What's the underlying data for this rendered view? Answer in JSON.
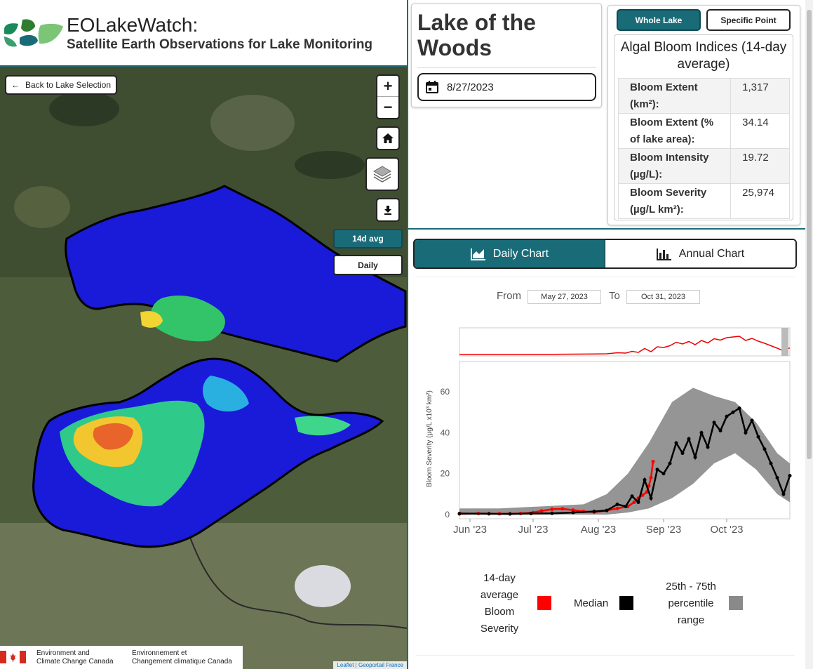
{
  "header": {
    "title": "EOLakeWatch:",
    "subtitle": "Satellite Earth Observations for Lake Monitoring"
  },
  "map": {
    "back_label": "Back to Lake Selection",
    "zoom_in": "+",
    "zoom_out": "−",
    "avg_label": "14d avg",
    "daily_label": "Daily",
    "attribution": "Leaflet | Geoportail France",
    "gov_en": [
      "Environment and",
      "Climate Change Canada"
    ],
    "gov_fr": [
      "Environnement et",
      "Changement climatique Canada"
    ]
  },
  "lake": {
    "name": "Lake of the Woods",
    "date": "8/27/2023"
  },
  "mode": {
    "whole_lake": "Whole Lake",
    "specific_point": "Specific Point"
  },
  "indices": {
    "title": "Algal Bloom Indices (14-day average)",
    "rows": [
      {
        "label": "Bloom Extent (km²):",
        "value": "1,317"
      },
      {
        "label": "Bloom Extent (% of lake area):",
        "value": "34.14"
      },
      {
        "label": "Bloom Intensity (µg/L):",
        "value": "19.72"
      },
      {
        "label": "Bloom Severity (µg/L km²):",
        "value": "25,974"
      }
    ]
  },
  "tabs": {
    "daily": "Daily Chart",
    "annual": "Annual Chart"
  },
  "range": {
    "from_label": "From",
    "from_value": "May 27, 2023",
    "to_label": "To",
    "to_value": "Oct 31, 2023"
  },
  "legend": {
    "avg": "14-day average Bloom Severity",
    "median": "Median",
    "pct": "25th - 75th percentile range"
  },
  "colors": {
    "accent": "#1a6b78",
    "avg": "#ff0000",
    "median": "#000000",
    "pct": "#8a8a8a"
  },
  "chart_data": {
    "type": "line",
    "ylabel": "Bloom Severity (µg/L x10³ km²)",
    "ylim": [
      0,
      70
    ],
    "yticks": [
      0,
      20,
      40,
      60
    ],
    "xticks": [
      "Jun '23",
      "Jul '23",
      "Aug '23",
      "Sep '23",
      "Oct '23"
    ],
    "x_start": "2023-05-27",
    "x_end": "2023-10-31",
    "series": [
      {
        "name": "14-day average Bloom Severity",
        "color": "#ff0000",
        "x": [
          "2023-05-27",
          "2023-06-05",
          "2023-06-15",
          "2023-06-25",
          "2023-07-01",
          "2023-07-05",
          "2023-07-10",
          "2023-07-15",
          "2023-07-20",
          "2023-07-25",
          "2023-07-30",
          "2023-08-05",
          "2023-08-10",
          "2023-08-15",
          "2023-08-18",
          "2023-08-20",
          "2023-08-22",
          "2023-08-24",
          "2023-08-25",
          "2023-08-26",
          "2023-08-27"
        ],
        "values": [
          0.3,
          0.5,
          0.4,
          0.5,
          1.0,
          1.8,
          2.6,
          2.8,
          2.2,
          1.5,
          1.2,
          2.0,
          3.0,
          4.0,
          6.0,
          8.0,
          9.5,
          11.0,
          14.0,
          18.0,
          25.9
        ]
      },
      {
        "name": "Median",
        "color": "#000000",
        "x": [
          "2023-05-27",
          "2023-06-10",
          "2023-06-20",
          "2023-06-30",
          "2023-07-10",
          "2023-07-20",
          "2023-07-30",
          "2023-08-05",
          "2023-08-10",
          "2023-08-14",
          "2023-08-17",
          "2023-08-20",
          "2023-08-23",
          "2023-08-26",
          "2023-08-29",
          "2023-09-01",
          "2023-09-04",
          "2023-09-07",
          "2023-09-10",
          "2023-09-13",
          "2023-09-16",
          "2023-09-19",
          "2023-09-22",
          "2023-09-25",
          "2023-09-28",
          "2023-10-01",
          "2023-10-04",
          "2023-10-07",
          "2023-10-10",
          "2023-10-13",
          "2023-10-16",
          "2023-10-19",
          "2023-10-22",
          "2023-10-25",
          "2023-10-28",
          "2023-10-31"
        ],
        "values": [
          0.5,
          0.4,
          0.3,
          0.5,
          0.6,
          1.0,
          1.5,
          2.0,
          5.0,
          4.0,
          9.0,
          6.0,
          17.0,
          8.0,
          22.0,
          20.0,
          25.0,
          35.0,
          30.0,
          37.0,
          28.0,
          40.0,
          33.0,
          45.0,
          41.0,
          48.0,
          50.0,
          52.0,
          40.0,
          46.0,
          38.0,
          32.0,
          25.0,
          18.0,
          10.0,
          19.0
        ]
      }
    ],
    "band": {
      "name": "25th - 75th percentile range",
      "color": "#8a8a8a",
      "x": [
        "2023-05-27",
        "2023-06-15",
        "2023-07-05",
        "2023-07-25",
        "2023-08-05",
        "2023-08-15",
        "2023-08-25",
        "2023-09-05",
        "2023-09-15",
        "2023-09-25",
        "2023-10-05",
        "2023-10-15",
        "2023-10-25",
        "2023-10-31"
      ],
      "low": [
        0,
        0,
        0,
        0,
        0,
        1,
        3,
        8,
        15,
        25,
        30,
        22,
        10,
        6
      ],
      "high": [
        3,
        3,
        4,
        5,
        10,
        20,
        35,
        55,
        62,
        58,
        55,
        45,
        30,
        25
      ]
    }
  }
}
